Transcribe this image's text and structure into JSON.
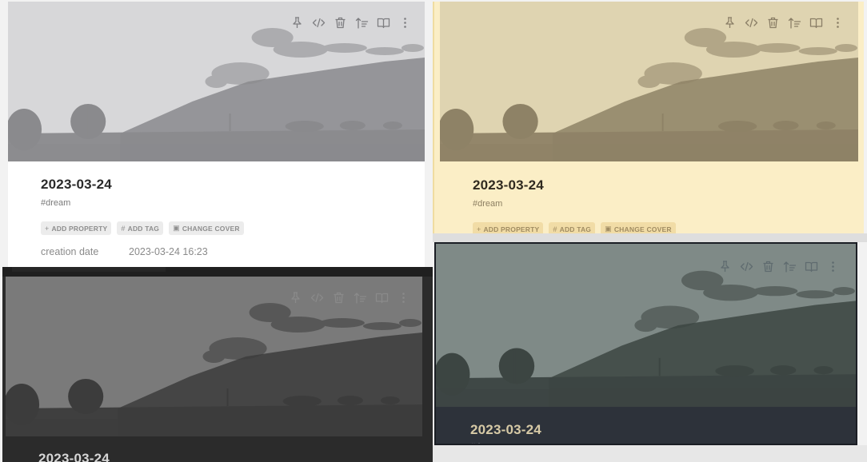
{
  "page": {
    "title": "2023-03-24",
    "tag": "#dream",
    "actions": {
      "add_property": "ADD PROPERTY",
      "add_tag": "ADD TAG",
      "change_cover": "CHANGE COVER"
    },
    "property": {
      "key": "creation date",
      "value": "2023-03-24 16:23"
    }
  },
  "toolbar_icons": [
    "pin-icon",
    "code-icon",
    "trash-icon",
    "sort-icon",
    "book-icon",
    "more-icon"
  ],
  "themes": {
    "light": {
      "bg": "#ffffff",
      "sky": "#d4d4d6",
      "land": "#8a8a8d"
    },
    "sepia": {
      "bg": "#fbeec6",
      "sky": "#ddd1ab",
      "land": "#8e8266"
    },
    "dark": {
      "bg": "#2b2b2b",
      "sky": "#6f6f6f",
      "land": "#3c3c3c"
    },
    "slate": {
      "bg": "#2d323a",
      "sky": "#75817d",
      "land": "#3c4542"
    }
  }
}
